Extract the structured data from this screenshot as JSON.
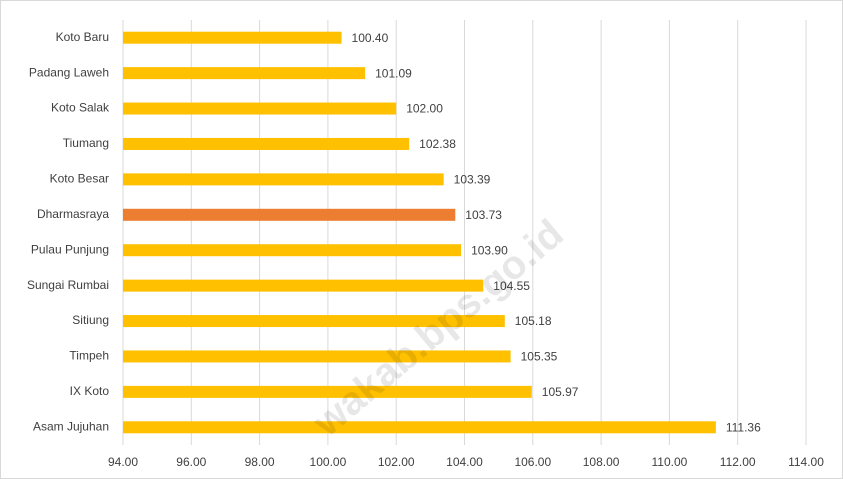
{
  "chart_data": {
    "type": "bar",
    "orientation": "horizontal",
    "categories": [
      "Koto Baru",
      "Padang Laweh",
      "Koto Salak",
      "Tiumang",
      "Koto Besar",
      "Dharmasraya",
      "Pulau Punjung",
      "Sungai Rumbai",
      "Sitiung",
      "Timpeh",
      "IX Koto",
      "Asam Jujuhan"
    ],
    "values": [
      100.4,
      101.09,
      102.0,
      102.38,
      103.39,
      103.73,
      103.9,
      104.55,
      105.18,
      105.35,
      105.97,
      111.36
    ],
    "value_labels": [
      "100.40",
      "101.09",
      "102.00",
      "102.38",
      "103.39",
      "103.73",
      "103.90",
      "104.55",
      "105.18",
      "105.35",
      "105.97",
      "111.36"
    ],
    "colors": [
      "#ffc000",
      "#ffc000",
      "#ffc000",
      "#ffc000",
      "#ffc000",
      "#ed7d31",
      "#ffc000",
      "#ffc000",
      "#ffc000",
      "#ffc000",
      "#ffc000",
      "#ffc000"
    ],
    "xlim": [
      94,
      114
    ],
    "xticks": [
      {
        "value": 94,
        "label": "94.00"
      },
      {
        "value": 96,
        "label": "96.00"
      },
      {
        "value": 98,
        "label": "98.00"
      },
      {
        "value": 100,
        "label": "100.00"
      },
      {
        "value": 102,
        "label": "102.00"
      },
      {
        "value": 104,
        "label": "104.00"
      },
      {
        "value": 106,
        "label": "106.00"
      },
      {
        "value": 108,
        "label": "108.00"
      },
      {
        "value": 110,
        "label": "110.00"
      },
      {
        "value": 112,
        "label": "112.00"
      },
      {
        "value": 114,
        "label": "114.00"
      }
    ],
    "grid": true,
    "watermark": "wakab.bps.go.id"
  }
}
